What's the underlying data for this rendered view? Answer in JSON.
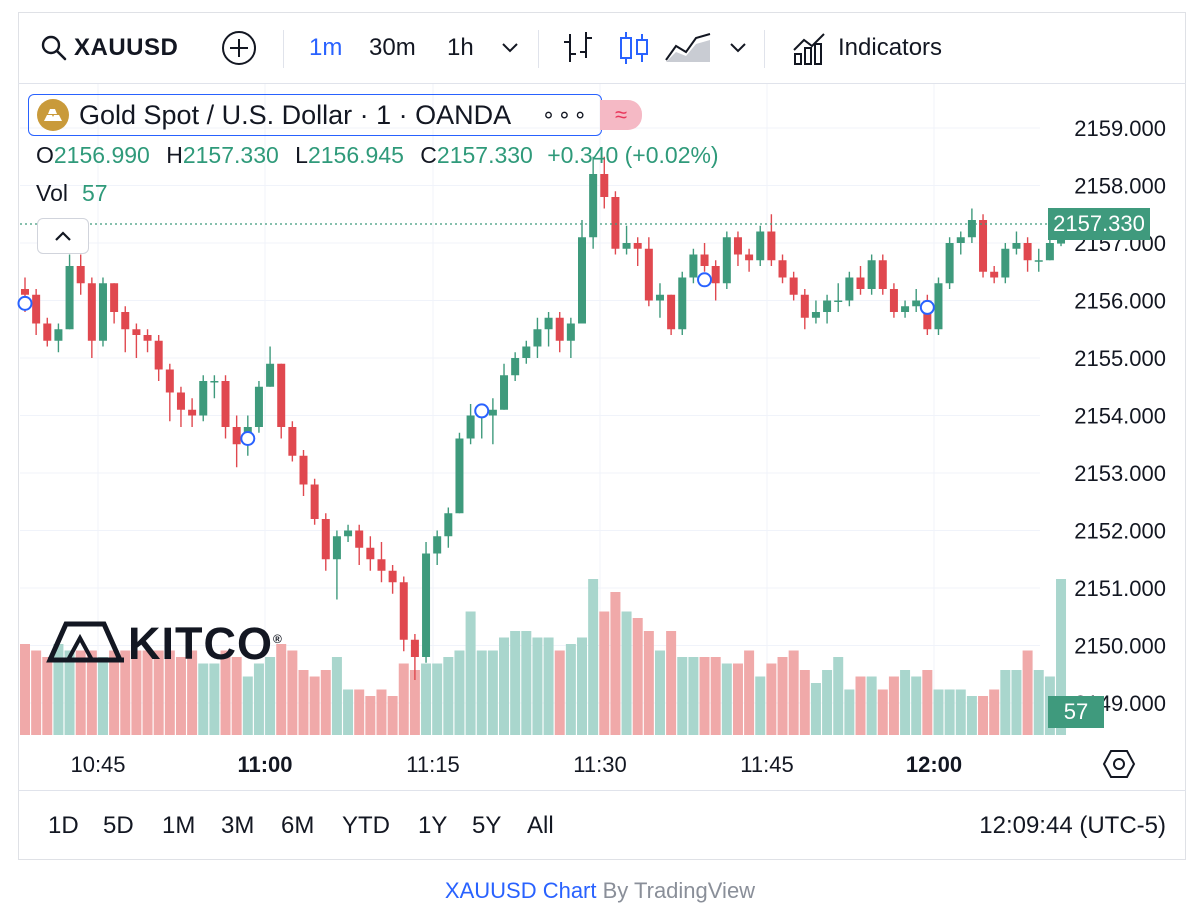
{
  "toolbar": {
    "symbol": "XAUUSD",
    "intervals": [
      "1m",
      "30m",
      "1h"
    ],
    "active_interval": "1m",
    "indicators_label": "Indicators"
  },
  "legend": {
    "title": "Gold Spot / U.S. Dollar · 1 · OANDA",
    "more": "∘∘∘",
    "compare_glyph": "≈",
    "ohlc": {
      "o_key": "O",
      "o": "2156.990",
      "h_key": "H",
      "h": "2157.330",
      "l_key": "L",
      "l": "2156.945",
      "c_key": "C",
      "c": "2157.330",
      "change": "+0.340 (+0.02%)"
    },
    "vol_key": "Vol",
    "vol": "57"
  },
  "watermark": {
    "text": "KITCO",
    "mark": "®"
  },
  "price_axis": {
    "labels": [
      "2159.000",
      "2158.000",
      "2157.000",
      "2156.000",
      "2155.000",
      "2154.000",
      "2153.000",
      "2152.000",
      "2151.000",
      "2150.000",
      "2149.000"
    ],
    "last_price": "2157.330",
    "last_volume": "57"
  },
  "time_axis": {
    "labels": [
      {
        "text": "10:45",
        "bold": false
      },
      {
        "text": "11:00",
        "bold": true
      },
      {
        "text": "11:15",
        "bold": false
      },
      {
        "text": "11:30",
        "bold": false
      },
      {
        "text": "11:45",
        "bold": false
      },
      {
        "text": "12:00",
        "bold": true
      }
    ]
  },
  "ranges": [
    "1D",
    "5D",
    "1M",
    "3M",
    "6M",
    "YTD",
    "1Y",
    "5Y",
    "All"
  ],
  "clock": "12:09:44 (UTC-5)",
  "credit": {
    "link": "XAUUSD Chart",
    "suffix": " By TradingView"
  },
  "colors": {
    "up": "#3e9a7c",
    "down": "#e0484f",
    "up_vol": "#a9d6cd",
    "down_vol": "#f0a9a9",
    "accent": "#2962ff"
  },
  "chart_data": {
    "type": "candlestick",
    "symbol": "XAUUSD",
    "interval": "1m",
    "ylim": [
      2148.5,
      2160.0
    ],
    "y_ticks": [
      2149,
      2150,
      2151,
      2152,
      2153,
      2154,
      2155,
      2156,
      2157,
      2158,
      2159
    ],
    "x_ticks": [
      "10:45",
      "11:00",
      "11:15",
      "11:30",
      "11:45",
      "12:00"
    ],
    "last_price": 2157.33,
    "candles": [
      {
        "o": 2156.2,
        "h": 2156.4,
        "l": 2155.8,
        "c": 2156.1,
        "v": 14
      },
      {
        "o": 2156.1,
        "h": 2156.2,
        "l": 2155.4,
        "c": 2155.6,
        "v": 13
      },
      {
        "o": 2155.6,
        "h": 2155.7,
        "l": 2155.2,
        "c": 2155.3,
        "v": 12
      },
      {
        "o": 2155.3,
        "h": 2155.6,
        "l": 2155.1,
        "c": 2155.5,
        "v": 14
      },
      {
        "o": 2155.5,
        "h": 2156.8,
        "l": 2155.5,
        "c": 2156.6,
        "v": 13
      },
      {
        "o": 2156.6,
        "h": 2156.8,
        "l": 2156.1,
        "c": 2156.3,
        "v": 13
      },
      {
        "o": 2156.3,
        "h": 2156.4,
        "l": 2155.0,
        "c": 2155.3,
        "v": 13
      },
      {
        "o": 2155.3,
        "h": 2156.4,
        "l": 2155.2,
        "c": 2156.3,
        "v": 12
      },
      {
        "o": 2156.3,
        "h": 2156.3,
        "l": 2155.6,
        "c": 2155.8,
        "v": 13
      },
      {
        "o": 2155.8,
        "h": 2155.9,
        "l": 2155.1,
        "c": 2155.5,
        "v": 13
      },
      {
        "o": 2155.5,
        "h": 2155.6,
        "l": 2155.0,
        "c": 2155.4,
        "v": 13
      },
      {
        "o": 2155.4,
        "h": 2155.5,
        "l": 2155.1,
        "c": 2155.3,
        "v": 13
      },
      {
        "o": 2155.3,
        "h": 2155.4,
        "l": 2154.6,
        "c": 2154.8,
        "v": 13
      },
      {
        "o": 2154.8,
        "h": 2154.9,
        "l": 2153.9,
        "c": 2154.4,
        "v": 13
      },
      {
        "o": 2154.4,
        "h": 2154.5,
        "l": 2153.8,
        "c": 2154.1,
        "v": 12
      },
      {
        "o": 2154.1,
        "h": 2154.3,
        "l": 2153.8,
        "c": 2154.0,
        "v": 13
      },
      {
        "o": 2154.0,
        "h": 2154.7,
        "l": 2153.9,
        "c": 2154.6,
        "v": 11
      },
      {
        "o": 2154.6,
        "h": 2154.7,
        "l": 2154.3,
        "c": 2154.6,
        "v": 11
      },
      {
        "o": 2154.6,
        "h": 2154.7,
        "l": 2153.6,
        "c": 2153.8,
        "v": 13
      },
      {
        "o": 2153.8,
        "h": 2154.0,
        "l": 2153.1,
        "c": 2153.5,
        "v": 12
      },
      {
        "o": 2153.5,
        "h": 2154.0,
        "l": 2153.3,
        "c": 2153.8,
        "v": 9
      },
      {
        "o": 2153.8,
        "h": 2154.6,
        "l": 2153.7,
        "c": 2154.5,
        "v": 11
      },
      {
        "o": 2154.5,
        "h": 2155.2,
        "l": 2154.5,
        "c": 2154.9,
        "v": 12
      },
      {
        "o": 2154.9,
        "h": 2154.9,
        "l": 2153.6,
        "c": 2153.8,
        "v": 14
      },
      {
        "o": 2153.8,
        "h": 2153.9,
        "l": 2153.2,
        "c": 2153.3,
        "v": 13
      },
      {
        "o": 2153.3,
        "h": 2153.4,
        "l": 2152.6,
        "c": 2152.8,
        "v": 10
      },
      {
        "o": 2152.8,
        "h": 2152.9,
        "l": 2152.1,
        "c": 2152.2,
        "v": 9
      },
      {
        "o": 2152.2,
        "h": 2152.3,
        "l": 2151.3,
        "c": 2151.5,
        "v": 10
      },
      {
        "o": 2151.5,
        "h": 2152.0,
        "l": 2150.8,
        "c": 2151.9,
        "v": 12
      },
      {
        "o": 2151.9,
        "h": 2152.1,
        "l": 2151.8,
        "c": 2152.0,
        "v": 7
      },
      {
        "o": 2152.0,
        "h": 2152.1,
        "l": 2151.4,
        "c": 2151.7,
        "v": 7
      },
      {
        "o": 2151.7,
        "h": 2151.9,
        "l": 2151.3,
        "c": 2151.5,
        "v": 6
      },
      {
        "o": 2151.5,
        "h": 2151.8,
        "l": 2151.1,
        "c": 2151.3,
        "v": 7
      },
      {
        "o": 2151.3,
        "h": 2151.4,
        "l": 2150.9,
        "c": 2151.1,
        "v": 6
      },
      {
        "o": 2151.1,
        "h": 2151.2,
        "l": 2149.9,
        "c": 2150.1,
        "v": 11
      },
      {
        "o": 2150.1,
        "h": 2150.2,
        "l": 2149.4,
        "c": 2149.8,
        "v": 10
      },
      {
        "o": 2149.8,
        "h": 2151.8,
        "l": 2149.7,
        "c": 2151.6,
        "v": 11
      },
      {
        "o": 2151.6,
        "h": 2152.0,
        "l": 2151.4,
        "c": 2151.9,
        "v": 11
      },
      {
        "o": 2151.9,
        "h": 2152.4,
        "l": 2151.7,
        "c": 2152.3,
        "v": 12
      },
      {
        "o": 2152.3,
        "h": 2153.7,
        "l": 2152.3,
        "c": 2153.6,
        "v": 13
      },
      {
        "o": 2153.6,
        "h": 2154.2,
        "l": 2153.5,
        "c": 2154.0,
        "v": 19
      },
      {
        "o": 2154.0,
        "h": 2154.1,
        "l": 2153.6,
        "c": 2154.0,
        "v": 13
      },
      {
        "o": 2154.0,
        "h": 2154.3,
        "l": 2153.5,
        "c": 2154.1,
        "v": 13
      },
      {
        "o": 2154.1,
        "h": 2154.9,
        "l": 2154.1,
        "c": 2154.7,
        "v": 15
      },
      {
        "o": 2154.7,
        "h": 2155.1,
        "l": 2154.6,
        "c": 2155.0,
        "v": 16
      },
      {
        "o": 2155.0,
        "h": 2155.3,
        "l": 2154.9,
        "c": 2155.2,
        "v": 16
      },
      {
        "o": 2155.2,
        "h": 2155.7,
        "l": 2155.0,
        "c": 2155.5,
        "v": 15
      },
      {
        "o": 2155.5,
        "h": 2155.8,
        "l": 2155.2,
        "c": 2155.7,
        "v": 15
      },
      {
        "o": 2155.7,
        "h": 2155.8,
        "l": 2155.1,
        "c": 2155.3,
        "v": 13
      },
      {
        "o": 2155.3,
        "h": 2155.7,
        "l": 2155.0,
        "c": 2155.6,
        "v": 14
      },
      {
        "o": 2155.6,
        "h": 2157.4,
        "l": 2155.6,
        "c": 2157.1,
        "v": 15
      },
      {
        "o": 2157.1,
        "h": 2158.5,
        "l": 2156.9,
        "c": 2158.2,
        "v": 24
      },
      {
        "o": 2158.2,
        "h": 2158.5,
        "l": 2157.6,
        "c": 2157.8,
        "v": 19
      },
      {
        "o": 2157.8,
        "h": 2157.9,
        "l": 2156.8,
        "c": 2156.9,
        "v": 22
      },
      {
        "o": 2156.9,
        "h": 2157.3,
        "l": 2156.8,
        "c": 2157.0,
        "v": 19
      },
      {
        "o": 2157.0,
        "h": 2157.1,
        "l": 2156.6,
        "c": 2156.9,
        "v": 18
      },
      {
        "o": 2156.9,
        "h": 2157.1,
        "l": 2155.9,
        "c": 2156.0,
        "v": 16
      },
      {
        "o": 2156.0,
        "h": 2156.3,
        "l": 2155.7,
        "c": 2156.1,
        "v": 13
      },
      {
        "o": 2156.1,
        "h": 2156.1,
        "l": 2155.4,
        "c": 2155.5,
        "v": 16
      },
      {
        "o": 2155.5,
        "h": 2156.5,
        "l": 2155.4,
        "c": 2156.4,
        "v": 12
      },
      {
        "o": 2156.4,
        "h": 2156.9,
        "l": 2156.3,
        "c": 2156.8,
        "v": 12
      },
      {
        "o": 2156.8,
        "h": 2157.0,
        "l": 2156.5,
        "c": 2156.6,
        "v": 12
      },
      {
        "o": 2156.6,
        "h": 2156.7,
        "l": 2156.0,
        "c": 2156.3,
        "v": 12
      },
      {
        "o": 2156.3,
        "h": 2157.2,
        "l": 2156.2,
        "c": 2157.1,
        "v": 11
      },
      {
        "o": 2157.1,
        "h": 2157.2,
        "l": 2156.6,
        "c": 2156.8,
        "v": 11
      },
      {
        "o": 2156.8,
        "h": 2156.9,
        "l": 2156.5,
        "c": 2156.7,
        "v": 13
      },
      {
        "o": 2156.7,
        "h": 2157.3,
        "l": 2156.6,
        "c": 2157.2,
        "v": 9
      },
      {
        "o": 2157.2,
        "h": 2157.5,
        "l": 2156.6,
        "c": 2156.7,
        "v": 11
      },
      {
        "o": 2156.7,
        "h": 2156.8,
        "l": 2156.3,
        "c": 2156.4,
        "v": 12
      },
      {
        "o": 2156.4,
        "h": 2156.5,
        "l": 2156.0,
        "c": 2156.1,
        "v": 13
      },
      {
        "o": 2156.1,
        "h": 2156.2,
        "l": 2155.5,
        "c": 2155.7,
        "v": 10
      },
      {
        "o": 2155.7,
        "h": 2156.0,
        "l": 2155.6,
        "c": 2155.8,
        "v": 8
      },
      {
        "o": 2155.8,
        "h": 2156.1,
        "l": 2155.6,
        "c": 2156.0,
        "v": 10
      },
      {
        "o": 2156.0,
        "h": 2156.3,
        "l": 2155.8,
        "c": 2156.0,
        "v": 12
      },
      {
        "o": 2156.0,
        "h": 2156.5,
        "l": 2155.9,
        "c": 2156.4,
        "v": 7
      },
      {
        "o": 2156.4,
        "h": 2156.6,
        "l": 2156.1,
        "c": 2156.2,
        "v": 9
      },
      {
        "o": 2156.2,
        "h": 2156.8,
        "l": 2156.1,
        "c": 2156.7,
        "v": 9
      },
      {
        "o": 2156.7,
        "h": 2156.8,
        "l": 2156.1,
        "c": 2156.2,
        "v": 7
      },
      {
        "o": 2156.2,
        "h": 2156.3,
        "l": 2155.7,
        "c": 2155.8,
        "v": 9
      },
      {
        "o": 2155.8,
        "h": 2156.0,
        "l": 2155.7,
        "c": 2155.9,
        "v": 10
      },
      {
        "o": 2155.9,
        "h": 2156.2,
        "l": 2155.8,
        "c": 2156.0,
        "v": 9
      },
      {
        "o": 2156.0,
        "h": 2156.1,
        "l": 2155.4,
        "c": 2155.5,
        "v": 10
      },
      {
        "o": 2155.5,
        "h": 2156.4,
        "l": 2155.4,
        "c": 2156.3,
        "v": 7
      },
      {
        "o": 2156.3,
        "h": 2157.1,
        "l": 2156.2,
        "c": 2157.0,
        "v": 7
      },
      {
        "o": 2157.0,
        "h": 2157.2,
        "l": 2156.8,
        "c": 2157.1,
        "v": 7
      },
      {
        "o": 2157.1,
        "h": 2157.6,
        "l": 2157.0,
        "c": 2157.4,
        "v": 6
      },
      {
        "o": 2157.4,
        "h": 2157.5,
        "l": 2156.4,
        "c": 2156.5,
        "v": 6
      },
      {
        "o": 2156.5,
        "h": 2156.6,
        "l": 2156.3,
        "c": 2156.4,
        "v": 7
      },
      {
        "o": 2156.4,
        "h": 2157.0,
        "l": 2156.3,
        "c": 2156.9,
        "v": 10
      },
      {
        "o": 2156.9,
        "h": 2157.2,
        "l": 2156.8,
        "c": 2157.0,
        "v": 10
      },
      {
        "o": 2157.0,
        "h": 2157.1,
        "l": 2156.5,
        "c": 2156.7,
        "v": 13
      },
      {
        "o": 2156.7,
        "h": 2156.9,
        "l": 2156.5,
        "c": 2156.7,
        "v": 10
      },
      {
        "o": 2156.7,
        "h": 2157.1,
        "l": 2156.7,
        "c": 2157.0,
        "v": 9
      },
      {
        "o": 2156.99,
        "h": 2157.33,
        "l": 2156.945,
        "c": 2157.33,
        "v": 57
      }
    ]
  }
}
